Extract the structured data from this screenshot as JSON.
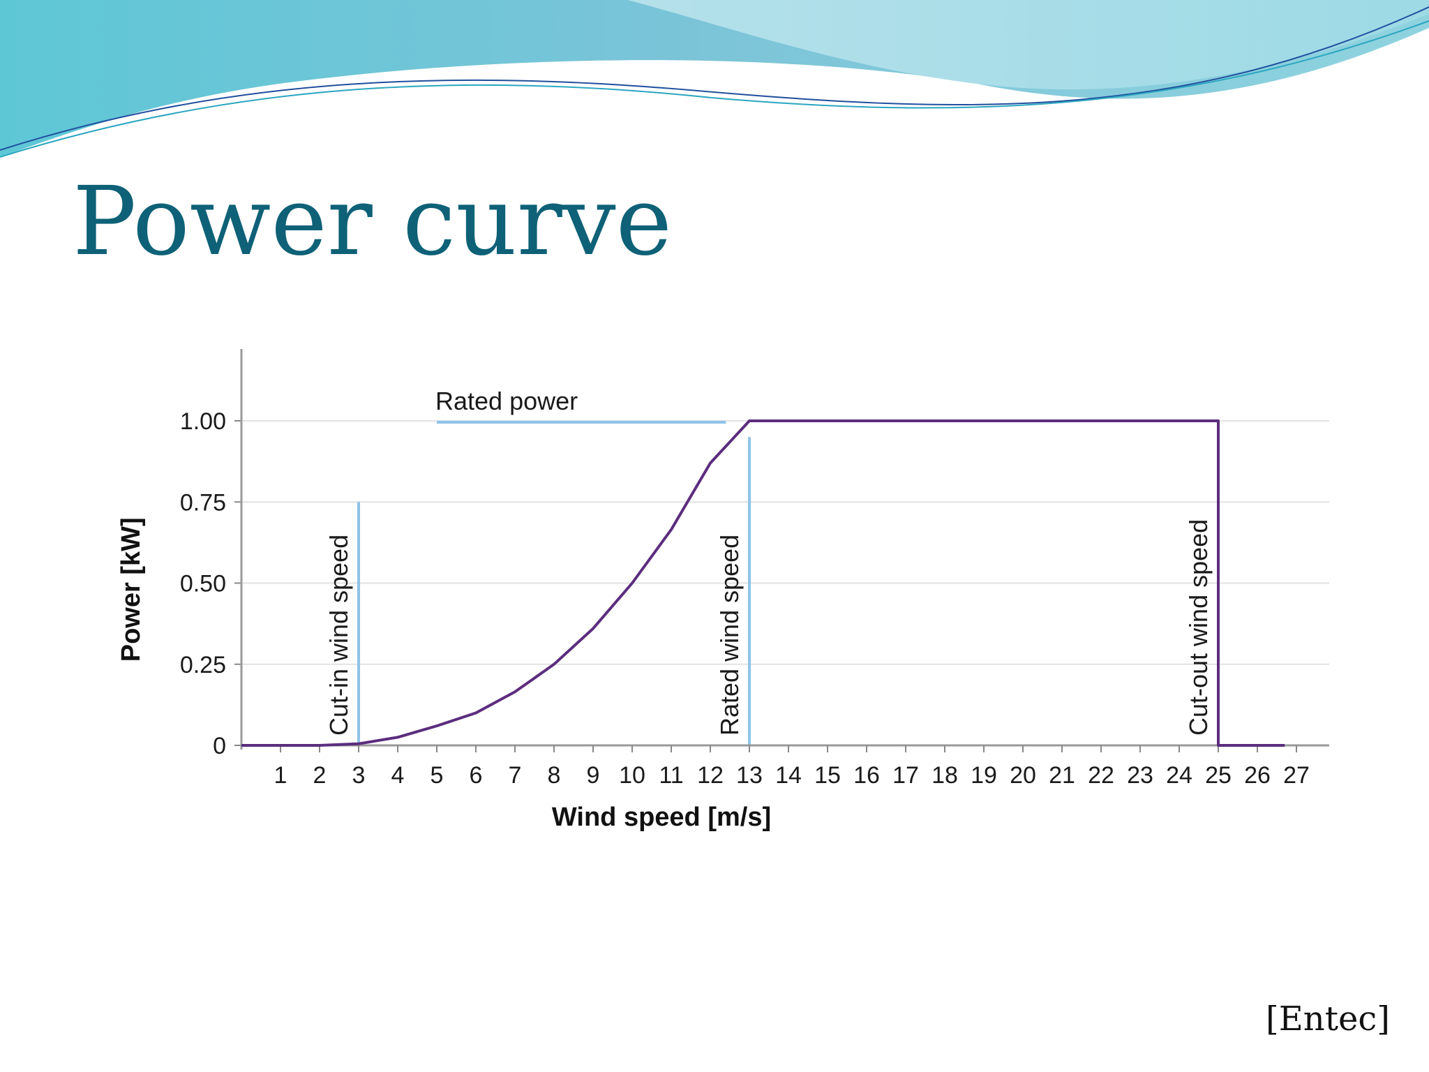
{
  "slide": {
    "title": "Power curve",
    "source": "[Entec]",
    "title_color": "#0e6177"
  },
  "chart_data": {
    "type": "line",
    "title": "",
    "xlabel": "Wind speed [m/s]",
    "ylabel": "Power [kW]",
    "xlim": [
      0,
      28
    ],
    "ylim": [
      0,
      1.2
    ],
    "x_ticks": [
      1,
      2,
      3,
      4,
      5,
      6,
      7,
      8,
      9,
      10,
      11,
      12,
      13,
      14,
      15,
      16,
      17,
      18,
      19,
      20,
      21,
      22,
      23,
      24,
      25,
      26,
      27
    ],
    "y_ticks": [
      {
        "value": 0,
        "label": "0"
      },
      {
        "value": 0.25,
        "label": "0.25"
      },
      {
        "value": 0.5,
        "label": "0.50"
      },
      {
        "value": 0.75,
        "label": "0.75"
      },
      {
        "value": 1.0,
        "label": "1.00"
      }
    ],
    "grid": "horizontal",
    "series": [
      {
        "color": "#5b2d7e",
        "x": [
          0,
          2,
          3,
          4,
          5,
          6,
          7,
          8,
          9,
          10,
          11,
          12,
          13,
          25,
          25,
          26.7
        ],
        "y": [
          0,
          0,
          0.005,
          0.025,
          0.06,
          0.1,
          0.165,
          0.25,
          0.36,
          0.5,
          0.665,
          0.87,
          1.0,
          1.0,
          0,
          0
        ]
      }
    ],
    "annotations": [
      {
        "text": "Rated power",
        "kind": "horizontal",
        "y": 1.0,
        "x_start": 5.0,
        "x_end": 12.4,
        "color": "#8fc3e8"
      },
      {
        "text": "Cut-in wind speed",
        "kind": "vertical",
        "x": 3,
        "y_start": 0,
        "y_end": 0.75,
        "color": "#8fc3e8"
      },
      {
        "text": "Rated wind speed",
        "kind": "vertical",
        "x": 13,
        "y_start": 0,
        "y_end": 0.95,
        "color": "#8fc3e8"
      },
      {
        "text": "Cut-out wind speed",
        "kind": "vertical",
        "x": 25,
        "y_start": 0,
        "y_end": 1.0,
        "color": "#8fc3e8"
      }
    ]
  }
}
